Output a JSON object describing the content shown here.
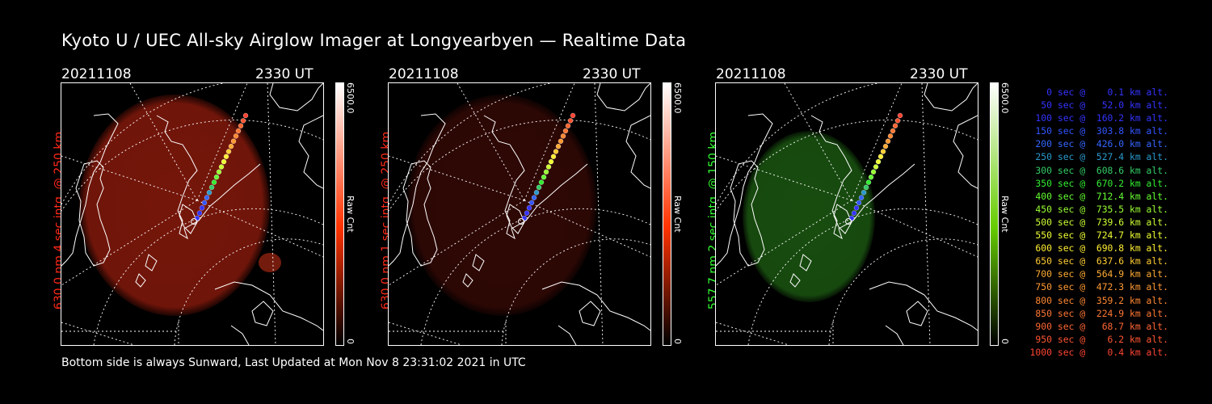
{
  "title": "Kyoto U / UEC All-sky Airglow Imager at Longyearbyen — Realtime Data",
  "panels": [
    {
      "date": "20211108",
      "time": "2330 UT",
      "label": "630.0 nm 4 sec intg. @ 250 km",
      "label_color": "#ff2a1a",
      "cbar_max": "6500.0",
      "cbar_unit": "Raw Cnt",
      "cbar_min": "0",
      "cbar_color": "#ff3300",
      "glow_color": "#8a1a0c",
      "glow_opacity": 0.85
    },
    {
      "date": "20211108",
      "time": "2330 UT",
      "label": "630.0 nm 1 sec intg. @ 250 km",
      "label_color": "#ff2a1a",
      "cbar_max": "6500.0",
      "cbar_unit": "Raw Cnt",
      "cbar_min": "0",
      "cbar_color": "#ff3300",
      "glow_color": "#3a0a06",
      "glow_opacity": 0.8
    },
    {
      "date": "20211108",
      "time": "2330 UT",
      "label": "557.7 nm 2 sec intg. @ 150 km",
      "label_color": "#33ff33",
      "cbar_max": "6500.0",
      "cbar_unit": "Raw Cnt",
      "cbar_min": "0",
      "cbar_color": "#66cc00",
      "glow_color": "#1c5a12",
      "glow_opacity": 0.85
    }
  ],
  "footer": "Bottom side is always Sunward, Last Updated at Mon Nov  8 23:31:02 2021 in UTC",
  "legend": [
    {
      "text": "   0 sec @    0.1 km alt.",
      "color": "#3333ff"
    },
    {
      "text": "  50 sec @   52.0 km alt.",
      "color": "#3333ff"
    },
    {
      "text": " 100 sec @  160.2 km alt.",
      "color": "#3333ff"
    },
    {
      "text": " 150 sec @  303.8 km alt.",
      "color": "#3355ff"
    },
    {
      "text": " 200 sec @  426.0 km alt.",
      "color": "#3366ff"
    },
    {
      "text": " 250 sec @  527.4 km alt.",
      "color": "#2a99cc"
    },
    {
      "text": " 300 sec @  608.6 km alt.",
      "color": "#33cc66"
    },
    {
      "text": " 350 sec @  670.2 km alt.",
      "color": "#33ee33"
    },
    {
      "text": " 400 sec @  712.4 km alt.",
      "color": "#66ff33"
    },
    {
      "text": " 450 sec @  735.5 km alt.",
      "color": "#99ff33"
    },
    {
      "text": " 500 sec @  739.6 km alt.",
      "color": "#ccff33"
    },
    {
      "text": " 550 sec @  724.7 km alt.",
      "color": "#eeff33"
    },
    {
      "text": " 600 sec @  690.8 km alt.",
      "color": "#ffee33"
    },
    {
      "text": " 650 sec @  637.6 km alt.",
      "color": "#ffcc33"
    },
    {
      "text": " 700 sec @  564.9 km alt.",
      "color": "#ffaa33"
    },
    {
      "text": " 750 sec @  472.3 km alt.",
      "color": "#ff9933"
    },
    {
      "text": " 800 sec @  359.2 km alt.",
      "color": "#ff8833"
    },
    {
      "text": " 850 sec @  224.9 km alt.",
      "color": "#ff7733"
    },
    {
      "text": " 900 sec @   68.7 km alt.",
      "color": "#ff6633"
    },
    {
      "text": " 950 sec @    6.2 km alt.",
      "color": "#ff5533"
    },
    {
      "text": "1000 sec @    0.4 km alt.",
      "color": "#ff4433"
    }
  ]
}
